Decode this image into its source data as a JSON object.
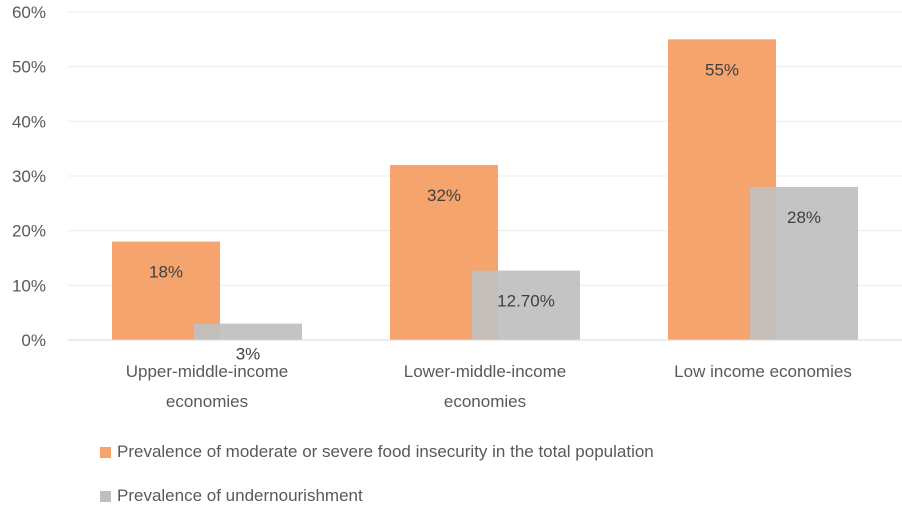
{
  "chart_data": {
    "type": "bar",
    "categories": [
      [
        "Upper-middle-income",
        "economies"
      ],
      [
        "Lower-middle-income",
        "economies"
      ],
      [
        "Low income economies"
      ]
    ],
    "series": [
      {
        "name": "Prevalence of moderate or severe food insecurity in the total population",
        "color": "#F4A46C",
        "values": [
          18,
          32,
          55
        ],
        "labels": [
          "18%",
          "32%",
          "55%"
        ]
      },
      {
        "name": "Prevalence of undernourishment",
        "color": "#BFBFBF",
        "values": [
          3,
          12.7,
          28
        ],
        "labels": [
          "3%",
          "12.70%",
          "28%"
        ]
      }
    ],
    "ylim": [
      0,
      60
    ],
    "yticks": [
      "0%",
      "10%",
      "20%",
      "30%",
      "40%",
      "50%",
      "60%"
    ],
    "grid": true,
    "legend_position": "bottom-left"
  }
}
